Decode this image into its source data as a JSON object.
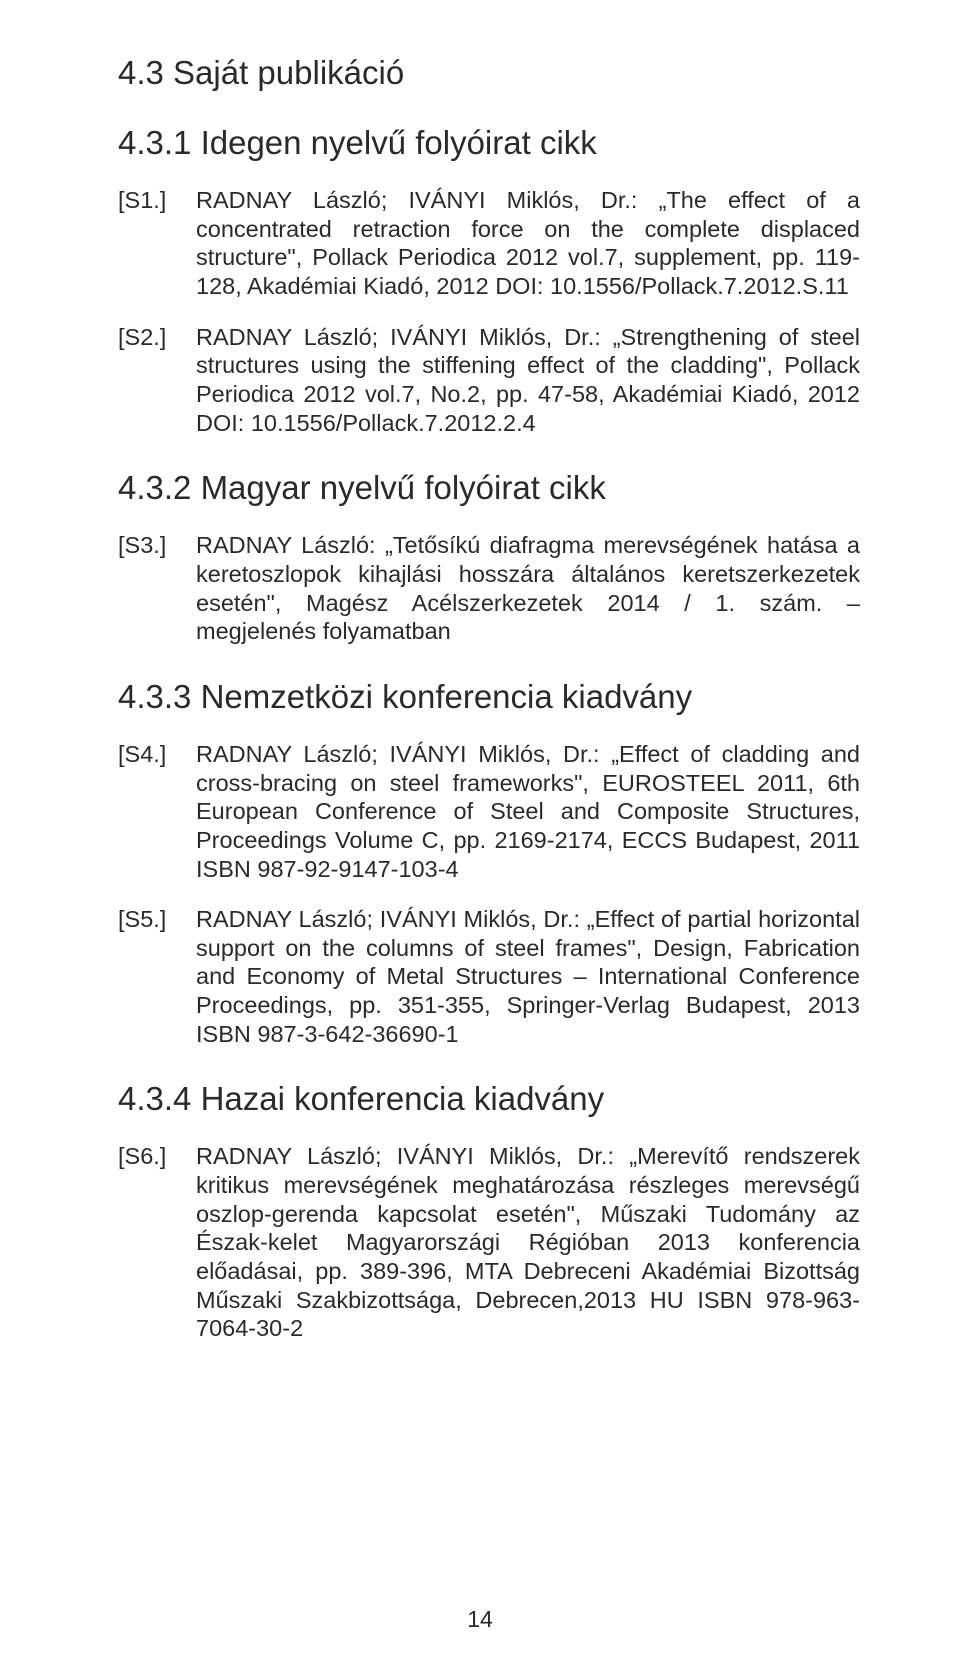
{
  "colors": {
    "text": "#2a2a2a",
    "background": "#ffffff"
  },
  "typography": {
    "heading_fontsize_pt": 25,
    "body_fontsize_pt": 18,
    "font_family": "Arial"
  },
  "page_number": "14",
  "section_heading": "4.3 Saját publikáció",
  "subsections": [
    {
      "heading": "4.3.1 Idegen nyelvű folyóirat cikk",
      "entries": [
        {
          "tag": "[S1.]",
          "text": "RADNAY László; IVÁNYI Miklós, Dr.: „The effect of a concentrated retraction force on the complete displaced structure\", Pollack Periodica 2012 vol.7, supplement, pp. 119-128, Akadémiai Kiadó, 2012 DOI: 10.1556/Pollack.7.2012.S.11"
        },
        {
          "tag": "[S2.]",
          "text": "RADNAY László; IVÁNYI Miklós, Dr.: „Strengthening of steel structures using the stiffening effect of the cladding\", Pollack Periodica 2012 vol.7, No.2, pp. 47-58, Akadémiai Kiadó, 2012 DOI: 10.1556/Pollack.7.2012.2.4"
        }
      ]
    },
    {
      "heading": "4.3.2 Magyar nyelvű folyóirat cikk",
      "entries": [
        {
          "tag": "[S3.]",
          "text": "RADNAY László: „Tetősíkú diafragma merevségének hatása a keretoszlopok kihajlási hosszára általános keretszerkezetek esetén\", Magész Acélszerkezetek 2014 / 1. szám. – megjelenés folyamatban"
        }
      ]
    },
    {
      "heading": "4.3.3 Nemzetközi konferencia kiadvány",
      "entries": [
        {
          "tag": "[S4.]",
          "text": "RADNAY László; IVÁNYI Miklós, Dr.: „Effect of cladding and cross-bracing on steel frameworks\", EUROSTEEL 2011, 6th European Conference of Steel and Composite Structures, Proceedings Volume C, pp. 2169-2174, ECCS Budapest, 2011 ISBN 987-92-9147-103-4"
        },
        {
          "tag": "[S5.]",
          "text": "RADNAY László; IVÁNYI Miklós, Dr.: „Effect of partial horizontal support on the columns of steel frames\", Design, Fabrication and Economy of Metal Structures – International Conference Proceedings, pp. 351-355, Springer-Verlag Budapest, 2013 ISBN 987-3-642-36690-1"
        }
      ]
    },
    {
      "heading": "4.3.4 Hazai konferencia kiadvány",
      "entries": [
        {
          "tag": "[S6.]",
          "text": "RADNAY László; IVÁNYI Miklós, Dr.: „Merevítő rendszerek kritikus merevségének meghatározása részleges merevségű oszlop-gerenda kapcsolat esetén\", Műszaki Tudomány az Észak-kelet Magyarországi Régióban 2013 konferencia előadásai, pp. 389-396, MTA Debreceni Akadémiai Bizottság Műszaki Szakbizottsága, Debrecen,2013 HU ISBN 978-963-7064-30-2"
        }
      ]
    }
  ]
}
